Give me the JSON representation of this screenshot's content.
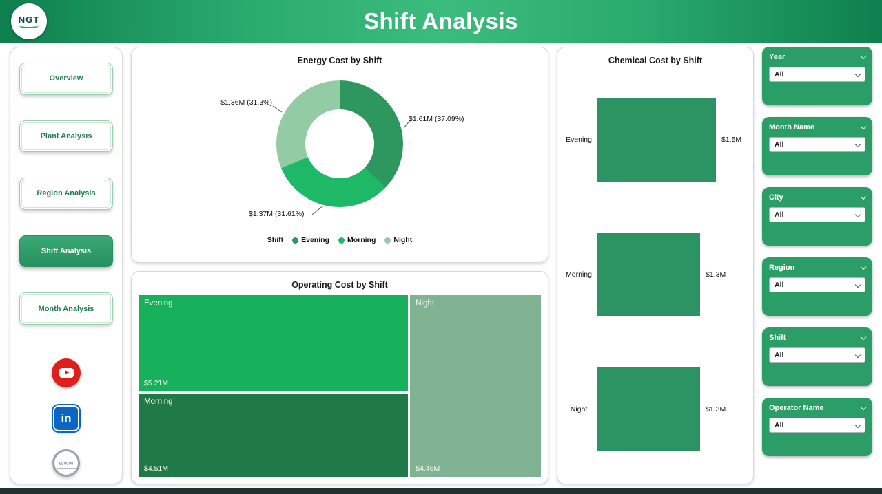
{
  "header": {
    "title": "Shift Analysis",
    "logo": "NGT"
  },
  "sidebar": {
    "items": [
      {
        "label": "Overview",
        "active": false
      },
      {
        "label": "Plant Analysis",
        "active": false
      },
      {
        "label": "Region Analysis",
        "active": false
      },
      {
        "label": "Shift Analysis",
        "active": true
      },
      {
        "label": "Month Analysis",
        "active": false
      }
    ],
    "social": [
      {
        "name": "youtube-icon",
        "color": "#df1f1c"
      },
      {
        "name": "linkedin-icon",
        "color": "#0a66c2",
        "glyph": "in"
      },
      {
        "name": "website-icon",
        "color": "#9aa0a4",
        "glyph": "www"
      }
    ]
  },
  "filters": [
    {
      "label": "Year",
      "value": "All"
    },
    {
      "label": "Month Name",
      "value": "All"
    },
    {
      "label": "City",
      "value": "All"
    },
    {
      "label": "Region",
      "value": "All"
    },
    {
      "label": "Shift",
      "value": "All"
    },
    {
      "label": "Operator Name",
      "value": "All"
    }
  ],
  "chart_data": [
    {
      "type": "pie",
      "subtype": "donut",
      "title": "Energy Cost by Shift",
      "legend_title": "Shift",
      "legend_position": "bottom",
      "series": [
        {
          "name": "Evening",
          "value_m": 1.61,
          "pct": 37.09,
          "label": "$1.61M (37.09%)",
          "color": "#2e9760"
        },
        {
          "name": "Morning",
          "value_m": 1.37,
          "pct": 31.61,
          "label": "$1.37M (31.61%)",
          "color": "#1db966"
        },
        {
          "name": "Night",
          "value_m": 1.36,
          "pct": 31.3,
          "label": "$1.36M (31.3%)",
          "color": "#93cba4"
        }
      ]
    },
    {
      "type": "heatmap",
      "subtype": "treemap",
      "title": "Operating Cost by Shift",
      "items": [
        {
          "name": "Evening",
          "value": "$5.21M",
          "value_m": 5.21,
          "color": "#16b15a"
        },
        {
          "name": "Morning",
          "value": "$4.51M",
          "value_m": 4.51,
          "color": "#1f7a47"
        },
        {
          "name": "Night",
          "value": "$4.46M",
          "value_m": 4.46,
          "color": "#7fb392"
        }
      ]
    },
    {
      "type": "bar",
      "orientation": "horizontal",
      "title": "Chemical Cost by Shift",
      "categories": [
        "Evening",
        "Morning",
        "Night"
      ],
      "values_m": [
        1.5,
        1.3,
        1.3
      ],
      "labels": [
        "$1.5M",
        "$1.3M",
        "$1.3M"
      ],
      "bar_color": "#2b9462",
      "xlim": [
        0,
        1.6
      ]
    }
  ],
  "theme": {
    "header_green_dark": "#0e7f4e",
    "header_green_light": "#3bbb7d",
    "accent_green": "#2a9e66"
  }
}
